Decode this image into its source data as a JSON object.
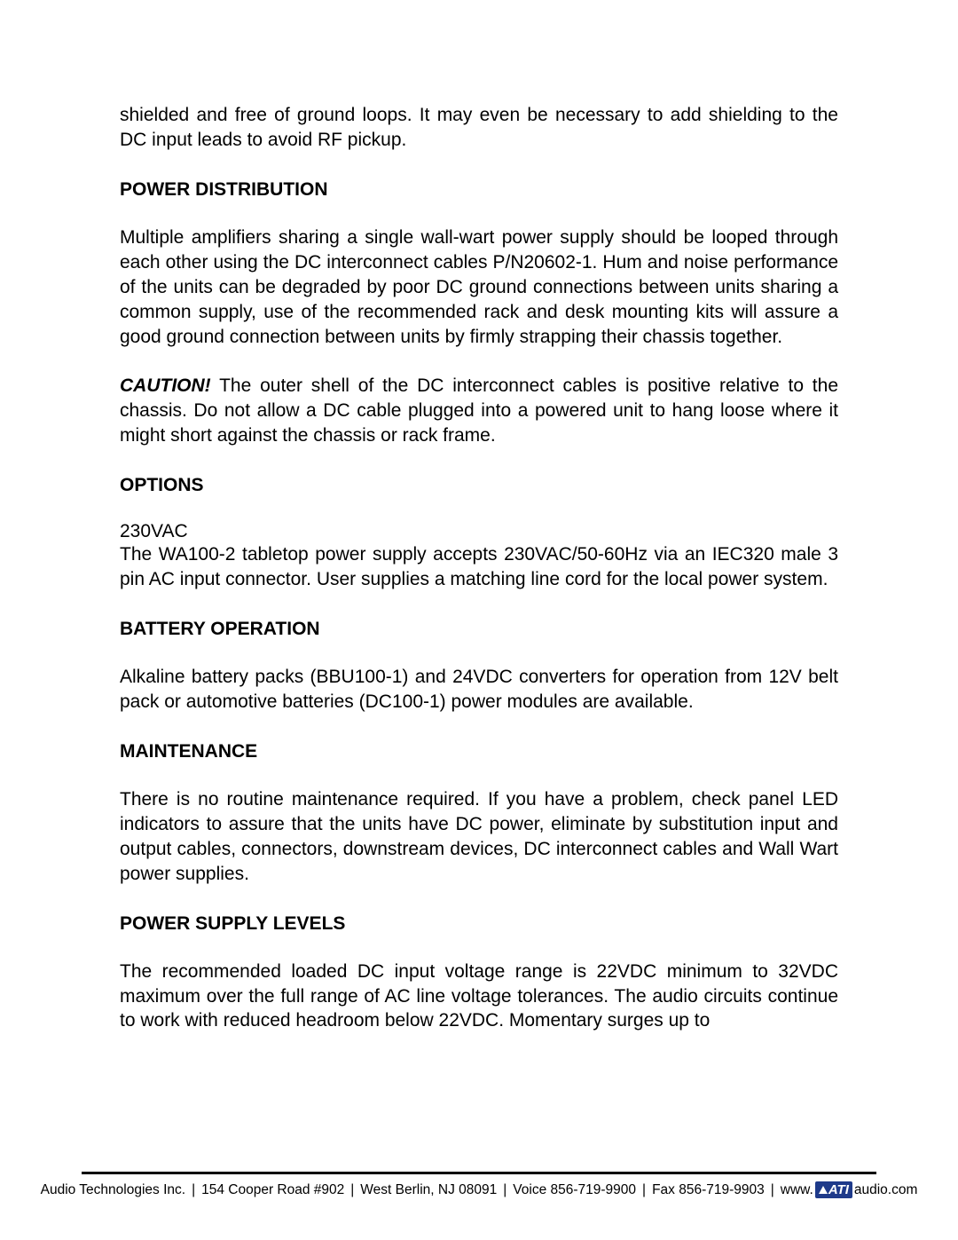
{
  "document": {
    "intro_text": "shielded and free of ground loops. It may even be necessary to add shielding to the DC input leads to avoid RF pickup.",
    "sections": {
      "power_distribution": {
        "heading": "POWER DISTRIBUTION",
        "body": "Multiple amplifiers sharing a single wall-wart power supply should be looped through each other using the DC interconnect cables P/N20602-1. Hum and noise performance of the units can be degraded by poor DC ground connections between units sharing a common supply, use of the recommended rack and desk mounting kits will assure a good ground connection between units by firmly strapping their chassis together."
      },
      "caution": {
        "label": "CAUTION!",
        "body": " The outer shell of the DC interconnect cables is positive relative to the chassis. Do not allow a DC cable plugged into a powered unit to hang loose where it might short against the chassis or rack frame."
      },
      "options": {
        "heading": "OPTIONS",
        "sub_label": "230VAC",
        "body": "The WA100-2 tabletop power supply accepts 230VAC/50-60Hz via an IEC320 male 3 pin AC input connector. User supplies a matching line cord for the local power system."
      },
      "battery_operation": {
        "heading": "BATTERY OPERATION",
        "body": "Alkaline battery packs (BBU100-1) and 24VDC converters for operation from 12V belt pack or automotive batteries (DC100-1) power modules are available."
      },
      "maintenance": {
        "heading": "MAINTENANCE",
        "body": "There is no routine maintenance required. If you have a problem, check panel LED indicators to assure that the units have DC power, eliminate by substitution input and output cables, connectors, downstream devices, DC interconnect cables and Wall Wart power supplies."
      },
      "power_supply_levels": {
        "heading": "POWER SUPPLY LEVELS",
        "body": "The recommended loaded DC input voltage range is 22VDC minimum to 32VDC maximum over the full range of AC line voltage tolerances. The audio circuits continue to work with reduced headroom below 22VDC. Momentary surges up to"
      }
    }
  },
  "footer": {
    "company": "Audio Technologies Inc.",
    "address": "154 Cooper Road #902",
    "city": "West Berlin, NJ 08091",
    "voice": "Voice 856-719-9900",
    "fax": "Fax 856-719-9903",
    "www_prefix": "www.",
    "logo_text": "ATI",
    "www_suffix": "audio.com",
    "separator": "|"
  },
  "styles": {
    "text_color": "#000000",
    "background_color": "#ffffff",
    "logo_bg": "#1e3a8a",
    "logo_fg": "#ffffff",
    "body_fontsize": 21,
    "footer_fontsize": 15.5
  }
}
